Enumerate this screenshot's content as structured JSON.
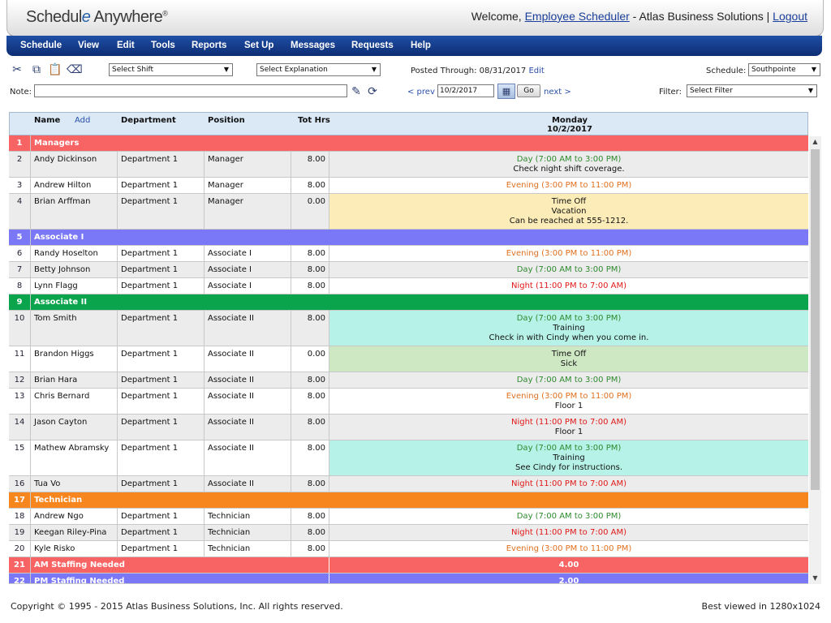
{
  "header": {
    "logo_part1": "Schedul",
    "logo_e": "e",
    "logo_part2": " Anywhere",
    "logo_reg": "®",
    "welcome_prefix": "Welcome, ",
    "user_name": "Employee Scheduler",
    "company": " - Atlas Business Solutions | ",
    "logout": "Logout"
  },
  "menu": [
    "Schedule",
    "View",
    "Edit",
    "Tools",
    "Reports",
    "Set Up",
    "Messages",
    "Requests",
    "Help"
  ],
  "toolbar": {
    "icons": [
      "scissors-icon",
      "copy-icon",
      "paste-icon",
      "eraser-icon"
    ],
    "select_shift": "Select Shift",
    "select_explanation": "Select Explanation",
    "posted_label": "Posted Through:",
    "posted_date": "08/31/2017",
    "edit_link": "Edit",
    "schedule_label": "Schedule:",
    "schedule_value": "Southpointe",
    "note_label": "Note:",
    "prev": "< prev",
    "date_value": "10/2/2017",
    "go": "Go",
    "next": "next >",
    "filter_label": "Filter:",
    "filter_value": "Select Filter"
  },
  "grid": {
    "headers": {
      "name": "Name",
      "add": "Add",
      "department": "Department",
      "position": "Position",
      "tot_hrs": "Tot Hrs",
      "day": "Monday",
      "date": "10/2/2017"
    },
    "rows": [
      {
        "type": "group",
        "num": "1",
        "label": "Managers",
        "color": "#f86464"
      },
      {
        "type": "emp",
        "num": "2",
        "name": "Andy Dickinson",
        "dept": "Department 1",
        "pos": "Manager",
        "hrs": "8.00",
        "bg": "#ececec",
        "lines": [
          {
            "t": "Day (7:00 AM to 3:00 PM)",
            "c": "day"
          },
          {
            "t": "Check night shift coverage.",
            "c": ""
          }
        ]
      },
      {
        "type": "emp",
        "num": "3",
        "name": "Andrew Hilton",
        "dept": "Department 1",
        "pos": "Manager",
        "hrs": "8.00",
        "bg": "#ffffff",
        "lines": [
          {
            "t": "Evening (3:00 PM to 11:00 PM)",
            "c": "eve"
          }
        ]
      },
      {
        "type": "emp",
        "num": "4",
        "name": "Brian Arffman",
        "dept": "Department 1",
        "pos": "Manager",
        "hrs": "0.00",
        "bg": "#ececec",
        "shiftbg": "#fcecb8",
        "lines": [
          {
            "t": "Time Off",
            "c": ""
          },
          {
            "t": "Vacation",
            "c": ""
          },
          {
            "t": "Can be reached at 555-1212.",
            "c": ""
          }
        ]
      },
      {
        "type": "group",
        "num": "5",
        "label": "Associate I",
        "color": "#7a78f6"
      },
      {
        "type": "emp",
        "num": "6",
        "name": "Randy Hoselton",
        "dept": "Department 1",
        "pos": "Associate I",
        "hrs": "8.00",
        "bg": "#ffffff",
        "lines": [
          {
            "t": "Evening (3:00 PM to 11:00 PM)",
            "c": "eve"
          }
        ]
      },
      {
        "type": "emp",
        "num": "7",
        "name": "Betty Johnson",
        "dept": "Department 1",
        "pos": "Associate I",
        "hrs": "8.00",
        "bg": "#ececec",
        "lines": [
          {
            "t": "Day (7:00 AM to 3:00 PM)",
            "c": "day"
          }
        ]
      },
      {
        "type": "emp",
        "num": "8",
        "name": "Lynn Flagg",
        "dept": "Department 1",
        "pos": "Associate I",
        "hrs": "8.00",
        "bg": "#ffffff",
        "lines": [
          {
            "t": "Night (11:00 PM to 7:00 AM)",
            "c": "nig"
          }
        ]
      },
      {
        "type": "group",
        "num": "9",
        "label": "Associate II",
        "color": "#0aa44c"
      },
      {
        "type": "emp",
        "num": "10",
        "name": "Tom Smith",
        "dept": "Department 1",
        "pos": "Associate II",
        "hrs": "8.00",
        "bg": "#ececec",
        "shiftbg": "#b6f2e8",
        "lines": [
          {
            "t": "Day (7:00 AM to 3:00 PM)",
            "c": "day"
          },
          {
            "t": "Training",
            "c": ""
          },
          {
            "t": "Check in with Cindy when you come in.",
            "c": ""
          }
        ]
      },
      {
        "type": "emp",
        "num": "11",
        "name": "Brandon Higgs",
        "dept": "Department 1",
        "pos": "Associate II",
        "hrs": "0.00",
        "bg": "#ffffff",
        "shiftbg": "#cfe8c4",
        "lines": [
          {
            "t": "Time Off",
            "c": ""
          },
          {
            "t": "Sick",
            "c": ""
          }
        ]
      },
      {
        "type": "emp",
        "num": "12",
        "name": "Brian Hara",
        "dept": "Department 1",
        "pos": "Associate II",
        "hrs": "8.00",
        "bg": "#ececec",
        "lines": [
          {
            "t": "Day (7:00 AM to 3:00 PM)",
            "c": "day"
          }
        ]
      },
      {
        "type": "emp",
        "num": "13",
        "name": "Chris Bernard",
        "dept": "Department 1",
        "pos": "Associate II",
        "hrs": "8.00",
        "bg": "#ffffff",
        "lines": [
          {
            "t": "Evening (3:00 PM to 11:00 PM)",
            "c": "eve"
          },
          {
            "t": "Floor 1",
            "c": ""
          }
        ]
      },
      {
        "type": "emp",
        "num": "14",
        "name": "Jason Cayton",
        "dept": "Department 1",
        "pos": "Associate II",
        "hrs": "8.00",
        "bg": "#ececec",
        "lines": [
          {
            "t": "Night (11:00 PM to 7:00 AM)",
            "c": "nig"
          },
          {
            "t": "Floor 1",
            "c": ""
          }
        ]
      },
      {
        "type": "emp",
        "num": "15",
        "name": "Mathew Abramsky",
        "dept": "Department 1",
        "pos": "Associate II",
        "hrs": "8.00",
        "bg": "#ffffff",
        "shiftbg": "#b6f2e8",
        "lines": [
          {
            "t": "Day (7:00 AM to 3:00 PM)",
            "c": "day"
          },
          {
            "t": "Training",
            "c": ""
          },
          {
            "t": "See Cindy for instructions.",
            "c": ""
          }
        ]
      },
      {
        "type": "emp",
        "num": "16",
        "name": "Tua Vo",
        "dept": "Department 1",
        "pos": "Associate II",
        "hrs": "8.00",
        "bg": "#ececec",
        "lines": [
          {
            "t": "Night (11:00 PM to 7:00 AM)",
            "c": "nig"
          }
        ]
      },
      {
        "type": "group",
        "num": "17",
        "label": "Technician",
        "color": "#f7861e"
      },
      {
        "type": "emp",
        "num": "18",
        "name": "Andrew Ngo",
        "dept": "Department 1",
        "pos": "Technician",
        "hrs": "8.00",
        "bg": "#ffffff",
        "lines": [
          {
            "t": "Day (7:00 AM to 3:00 PM)",
            "c": "day"
          }
        ]
      },
      {
        "type": "emp",
        "num": "19",
        "name": "Keegan Riley-Pina",
        "dept": "Department 1",
        "pos": "Technician",
        "hrs": "8.00",
        "bg": "#ececec",
        "lines": [
          {
            "t": "Night (11:00 PM to 7:00 AM)",
            "c": "nig"
          }
        ]
      },
      {
        "type": "emp",
        "num": "20",
        "name": "Kyle Risko",
        "dept": "Department 1",
        "pos": "Technician",
        "hrs": "8.00",
        "bg": "#ffffff",
        "lines": [
          {
            "t": "Evening (3:00 PM to 11:00 PM)",
            "c": "eve"
          }
        ]
      },
      {
        "type": "staff",
        "num": "21",
        "label": "AM Staffing Needed",
        "value": "4.00",
        "color": "#f86464"
      },
      {
        "type": "staff",
        "num": "22",
        "label": "PM Staffing Needed",
        "value": "2.00",
        "color": "#7a78f6"
      }
    ]
  },
  "footer": {
    "copyright": "Copyright © 1995 - 2015 Atlas Business Solutions, Inc. All rights reserved.",
    "best_viewed": "Best viewed in 1280x1024"
  }
}
